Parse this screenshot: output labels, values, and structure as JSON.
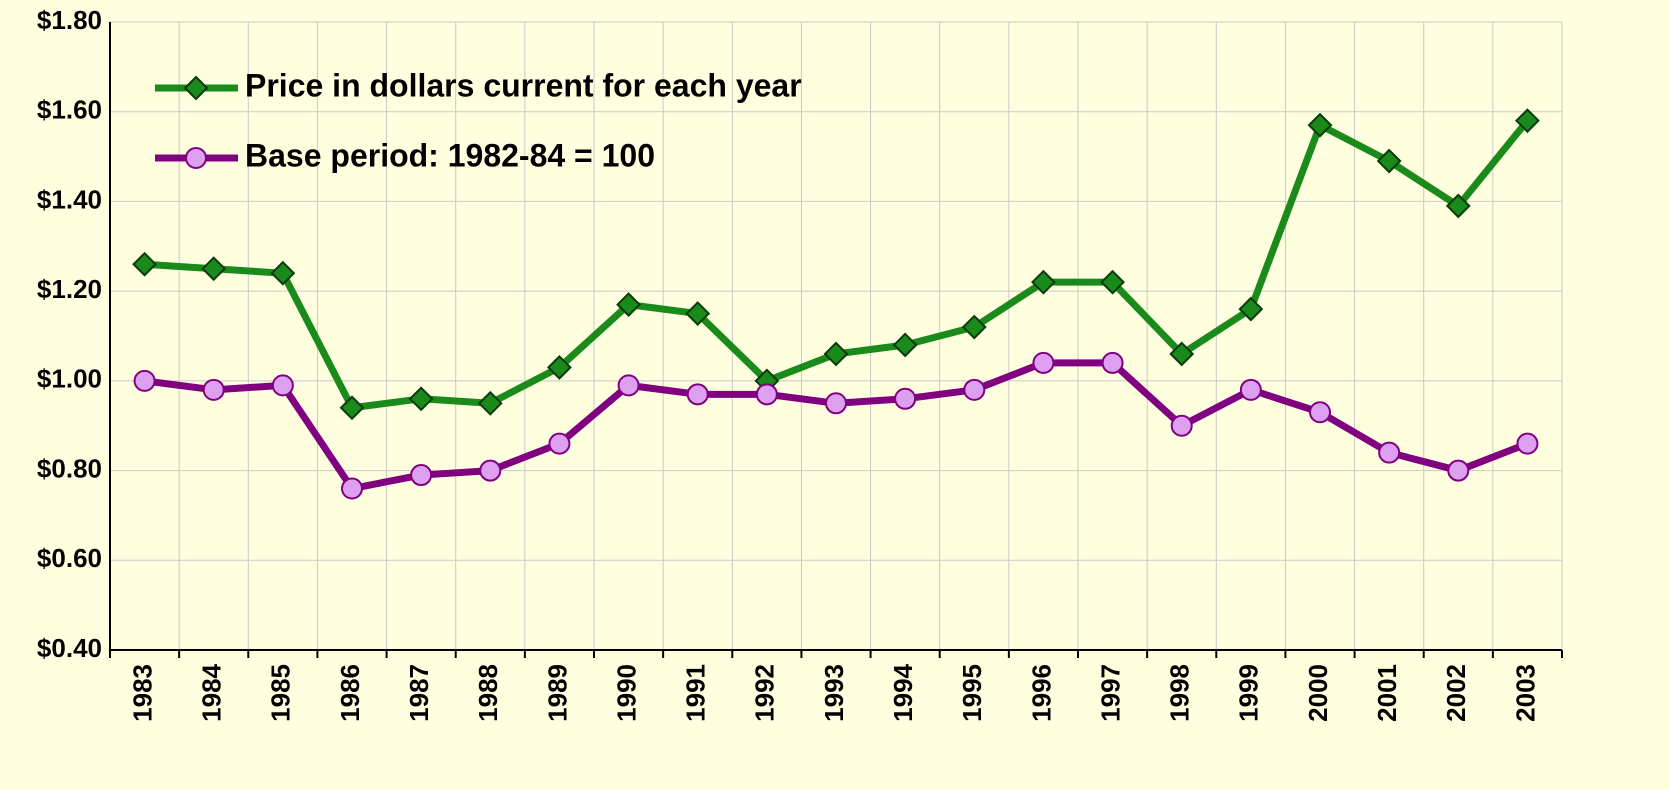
{
  "chart_data": {
    "type": "line",
    "categories": [
      "1983",
      "1984",
      "1985",
      "1986",
      "1987",
      "1988",
      "1989",
      "1990",
      "1991",
      "1992",
      "1993",
      "1994",
      "1995",
      "1996",
      "1997",
      "1998",
      "1999",
      "2000",
      "2001",
      "2002",
      "2003"
    ],
    "series": [
      {
        "name": "Price in dollars current for each year",
        "color": "#1a8a1a",
        "marker": "diamond",
        "values": [
          1.26,
          1.25,
          1.24,
          0.94,
          0.96,
          0.95,
          1.03,
          1.17,
          1.15,
          1.0,
          1.06,
          1.08,
          1.12,
          1.22,
          1.22,
          1.06,
          1.16,
          1.57,
          1.49,
          1.39,
          1.58
        ]
      },
      {
        "name": "Base period: 1982-84 = 100",
        "color": "#800080",
        "marker": "circle",
        "values": [
          1.0,
          0.98,
          0.99,
          0.76,
          0.79,
          0.8,
          0.86,
          0.99,
          0.97,
          0.97,
          0.95,
          0.96,
          0.98,
          1.04,
          1.04,
          0.9,
          0.98,
          0.93,
          0.84,
          0.8,
          0.86
        ]
      }
    ],
    "ylim": [
      0.4,
      1.8
    ],
    "yticks": [
      {
        "value": 0.4,
        "label": "$0.40"
      },
      {
        "value": 0.6,
        "label": "$0.60"
      },
      {
        "value": 0.8,
        "label": "$0.80"
      },
      {
        "value": 1.0,
        "label": "$1.00"
      },
      {
        "value": 1.2,
        "label": "$1.20"
      },
      {
        "value": 1.4,
        "label": "$1.40"
      },
      {
        "value": 1.6,
        "label": "$1.60"
      },
      {
        "value": 1.8,
        "label": "$1.80"
      }
    ],
    "grid": true,
    "legend": "top-left"
  }
}
